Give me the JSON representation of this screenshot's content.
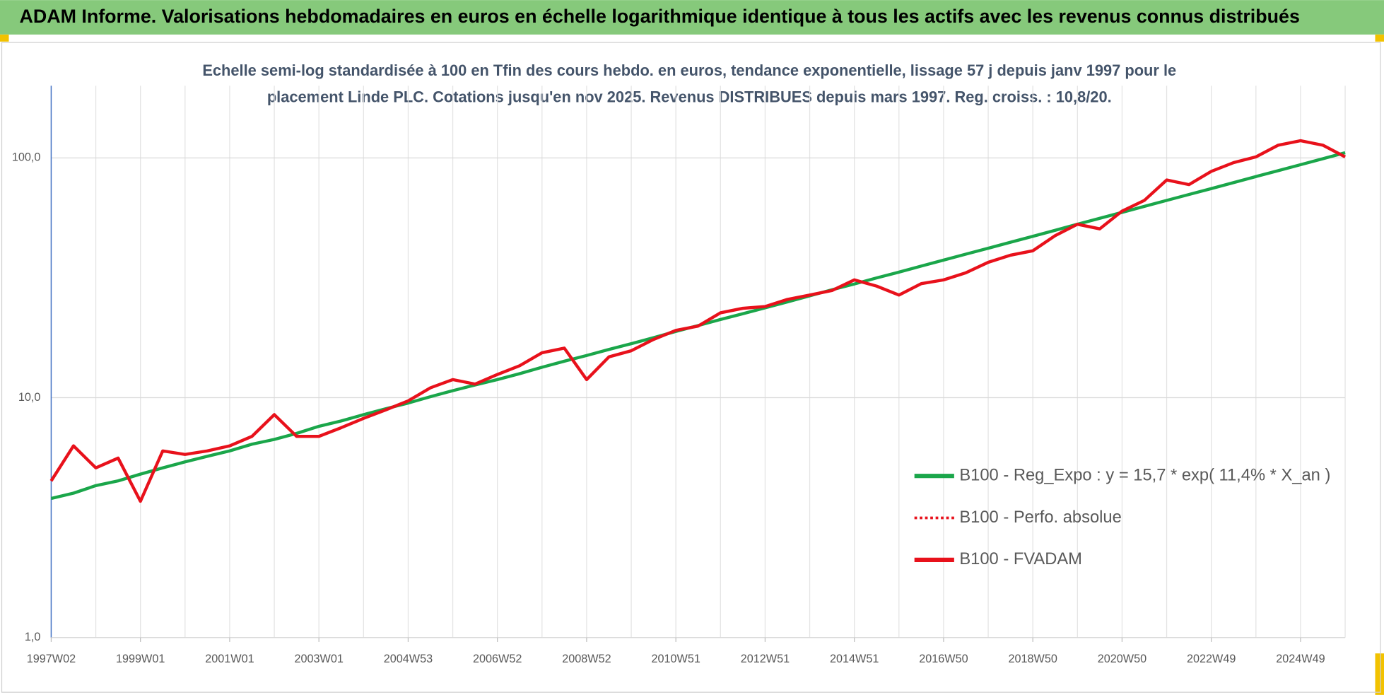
{
  "chart_data": {
    "type": "line",
    "title": "ADAM Informe. Valorisations hebdomadaires en euros en échelle logarithmique identique à tous les actifs avec les revenus connus distribués",
    "subtitle": [
      "Echelle semi-log standardisée à 100 en Tfin des cours hebdo. en euros, tendance exponentielle, lissage 57 j depuis janv 1997 pour le",
      "placement Linde PLC. Cotations jusqu'en nov 2025. Revenus DISTRIBUES depuis mars 1997. Reg. croiss. : 10,8/20."
    ],
    "log_scale": true,
    "grid": true,
    "legend_position": "right",
    "ylim": [
      1,
      200
    ],
    "yticks": [
      {
        "value": 1,
        "label": "1,0"
      },
      {
        "value": 10,
        "label": "10,0"
      },
      {
        "value": 100,
        "label": "100,0"
      }
    ],
    "categories": [
      "1997W02",
      null,
      null,
      null,
      "1999W01",
      null,
      null,
      null,
      "2001W01",
      null,
      null,
      null,
      "2003W01",
      null,
      null,
      null,
      "2004W53",
      null,
      null,
      null,
      "2006W52",
      null,
      null,
      null,
      "2008W52",
      null,
      null,
      null,
      "2010W51",
      null,
      null,
      null,
      "2012W51",
      null,
      null,
      null,
      "2014W51",
      null,
      null,
      null,
      "2016W50",
      null,
      null,
      null,
      "2018W50",
      null,
      null,
      null,
      "2020W50",
      null,
      null,
      null,
      "2022W49",
      null,
      null,
      null,
      "2024W49",
      null,
      null
    ],
    "series": [
      {
        "name": "B100 - Reg_Expo : y = 15,7 * exp( 11,4% *  X_an )",
        "color": "#1aa64a",
        "style": "solid",
        "values": [
          3.8,
          4.0,
          4.3,
          4.5,
          4.8,
          5.1,
          5.4,
          5.7,
          6.0,
          6.4,
          6.7,
          7.1,
          7.6,
          8.0,
          8.5,
          9.0,
          9.5,
          10.1,
          10.7,
          11.3,
          11.9,
          12.6,
          13.4,
          14.2,
          15.0,
          15.9,
          16.8,
          17.8,
          18.9,
          20.0,
          21.2,
          22.4,
          23.7,
          25.1,
          26.6,
          28.2,
          29.8,
          31.6,
          33.4,
          35.4,
          37.5,
          39.7,
          42.0,
          44.5,
          47.1,
          49.9,
          52.9,
          56.0,
          59.3,
          62.8,
          66.5,
          70.4,
          74.5,
          78.9,
          83.6,
          88.5,
          93.7,
          99.2,
          105.1
        ]
      },
      {
        "name": "B100 - Perfo. absolue",
        "color": "#e8111b",
        "style": "dotted",
        "values": [
          4.5,
          6.3,
          5.1,
          5.6,
          3.7,
          6.0,
          5.8,
          6.0,
          6.3,
          6.9,
          8.5,
          6.9,
          6.9,
          7.5,
          8.2,
          8.9,
          9.7,
          11.0,
          11.9,
          11.4,
          12.5,
          13.6,
          15.4,
          16.1,
          11.9,
          14.8,
          15.7,
          17.5,
          19.1,
          19.9,
          22.6,
          23.6,
          24.0,
          25.7,
          26.8,
          28.0,
          31.0,
          29.2,
          26.8,
          29.9,
          31.0,
          33.2,
          36.7,
          39.3,
          41.0,
          47.4,
          52.9,
          50.6,
          60.0,
          66.5,
          80.9,
          77.4,
          87.9,
          95.6,
          101.0,
          113.0,
          118.0,
          113.0,
          101.0
        ]
      },
      {
        "name": "B100 - FVADAM",
        "color": "#e8111b",
        "style": "solid",
        "values": [
          4.5,
          6.3,
          5.1,
          5.6,
          3.7,
          6.0,
          5.8,
          6.0,
          6.3,
          6.9,
          8.5,
          6.9,
          6.9,
          7.5,
          8.2,
          8.9,
          9.7,
          11.0,
          11.9,
          11.4,
          12.5,
          13.6,
          15.4,
          16.1,
          11.9,
          14.8,
          15.7,
          17.5,
          19.1,
          19.9,
          22.6,
          23.6,
          24.0,
          25.7,
          26.8,
          28.0,
          31.0,
          29.2,
          26.8,
          29.9,
          31.0,
          33.2,
          36.7,
          39.3,
          41.0,
          47.4,
          52.9,
          50.6,
          60.0,
          66.5,
          80.9,
          77.4,
          87.9,
          95.6,
          101.0,
          113.0,
          118.0,
          113.0,
          101.0
        ]
      }
    ]
  }
}
